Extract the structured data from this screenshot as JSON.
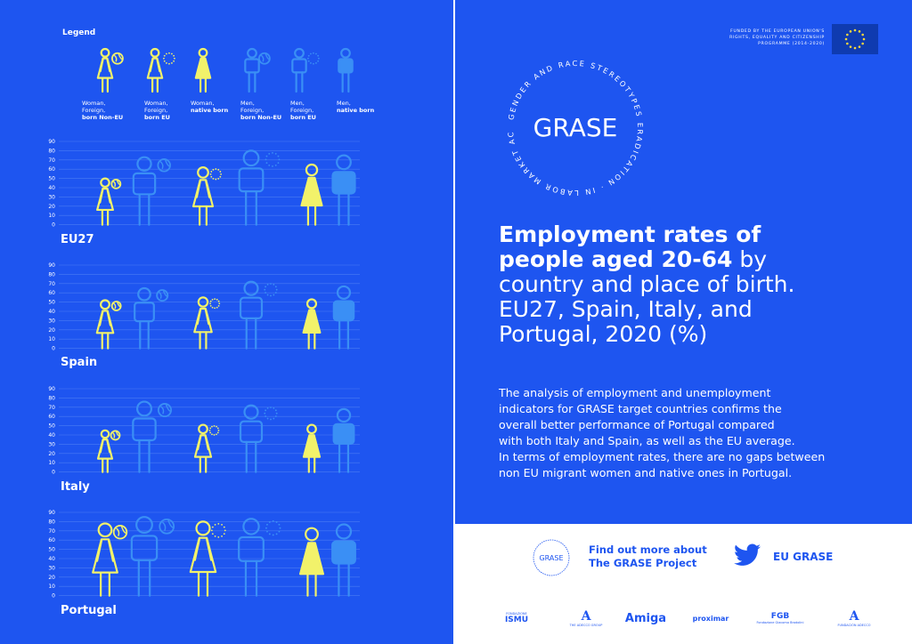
{
  "legend": {
    "title": "Legend",
    "items": [
      {
        "line1": "Woman,",
        "line2": "Foreign,",
        "line3": "born Non-EU"
      },
      {
        "line1": "Woman,",
        "line2": "Foreign,",
        "line3": "born EU"
      },
      {
        "line1": "Woman,",
        "line2": "",
        "line3": "native born"
      },
      {
        "line1": "Men,",
        "line2": "Foreign,",
        "line3": "born Non-EU"
      },
      {
        "line1": "Men,",
        "line2": "Foreign,",
        "line3": "born EU"
      },
      {
        "line1": "Men,",
        "line2": "",
        "line3": "native born"
      }
    ]
  },
  "funding": {
    "text": "FUNDED BY THE EUROPEAN UNION'S RIGHTS, EQUALITY AND CITIZENSHIP PROGRAMME (2014-2020)"
  },
  "logo": {
    "name": "GRASE",
    "ring_text": "GENDER AND RACE STEREOTYPES ERADICATION · IN LABOR MARKET ACCESS ·"
  },
  "headline": {
    "bold1": "Employment rates of",
    "bold2": "people aged 20-64",
    "rest1": " by",
    "rest2": "country and place of birth.",
    "rest3": "EU27, Spain, Italy, and",
    "rest4": "Portugal, 2020 (%)"
  },
  "body": {
    "lines": [
      "The analysis of employment and unemployment",
      "indicators for GRASE target countries confirms the",
      "overall better performance of Portugal compared",
      "with both Italy and Spain, as well as the EU average.",
      "In terms of employment rates, there are no gaps between",
      "non EU migrant women and native ones in Portugal."
    ]
  },
  "footer": {
    "find_line1": "Find out more about",
    "find_line2": "The GRASE Project",
    "twitter_handle": "EU GRASE",
    "small_logo": "GRASE",
    "partners": [
      {
        "main": "ISMU",
        "sub": "FONDAZIONE"
      },
      {
        "main": "A",
        "sub": "THE ADECCO GROUP"
      },
      {
        "main": "Amiga",
        "sub": ""
      },
      {
        "main": "proximar",
        "sub": ""
      },
      {
        "main": "FGB",
        "sub": "Fondazione Giacomo Brodolini"
      },
      {
        "main": "A",
        "sub": "FUNDACIÓN ADECCO"
      }
    ]
  },
  "colors": {
    "background": "#1e55f0",
    "women": "#f2f26a",
    "men": "#3a8ff5",
    "grid": "#4a7cf4",
    "text": "#ffffff"
  },
  "chart_data": [
    {
      "type": "bar",
      "country": "EU27",
      "ylim": [
        0,
        90
      ],
      "yticks": [
        90,
        80,
        70,
        60,
        50,
        40,
        30,
        20,
        10,
        0
      ],
      "categories": [
        "Woman, Foreign, born Non-EU",
        "Men, Foreign, born Non-EU",
        "Woman, Foreign, born EU",
        "Men, Foreign, born EU",
        "Woman, native born",
        "Men, native born"
      ],
      "values": [
        50,
        73,
        62,
        80,
        65,
        75
      ]
    },
    {
      "type": "bar",
      "country": "Spain",
      "ylim": [
        0,
        90
      ],
      "yticks": [
        90,
        80,
        70,
        60,
        50,
        40,
        30,
        20,
        10,
        0
      ],
      "categories": [
        "Woman, Foreign, born Non-EU",
        "Men, Foreign, born Non-EU",
        "Woman, Foreign, born EU",
        "Men, Foreign, born EU",
        "Woman, native born",
        "Men, native born"
      ],
      "values": [
        52,
        65,
        55,
        72,
        53,
        67
      ]
    },
    {
      "type": "bar",
      "country": "Italy",
      "ylim": [
        0,
        90
      ],
      "yticks": [
        90,
        80,
        70,
        60,
        50,
        40,
        30,
        20,
        10,
        0
      ],
      "categories": [
        "Woman, Foreign, born Non-EU",
        "Men, Foreign, born Non-EU",
        "Woman, Foreign, born EU",
        "Men, Foreign, born EU",
        "Woman, native born",
        "Men, native born"
      ],
      "values": [
        45,
        76,
        51,
        72,
        51,
        68
      ]
    },
    {
      "type": "bar",
      "country": "Portugal",
      "ylim": [
        0,
        90
      ],
      "yticks": [
        90,
        80,
        70,
        60,
        50,
        40,
        30,
        20,
        10,
        0
      ],
      "categories": [
        "Woman, Foreign, born Non-EU",
        "Men, Foreign, born Non-EU",
        "Woman, Foreign, born EU",
        "Men, Foreign, born EU",
        "Woman, native born",
        "Men, native born"
      ],
      "values": [
        78,
        85,
        80,
        83,
        73,
        77
      ]
    }
  ]
}
